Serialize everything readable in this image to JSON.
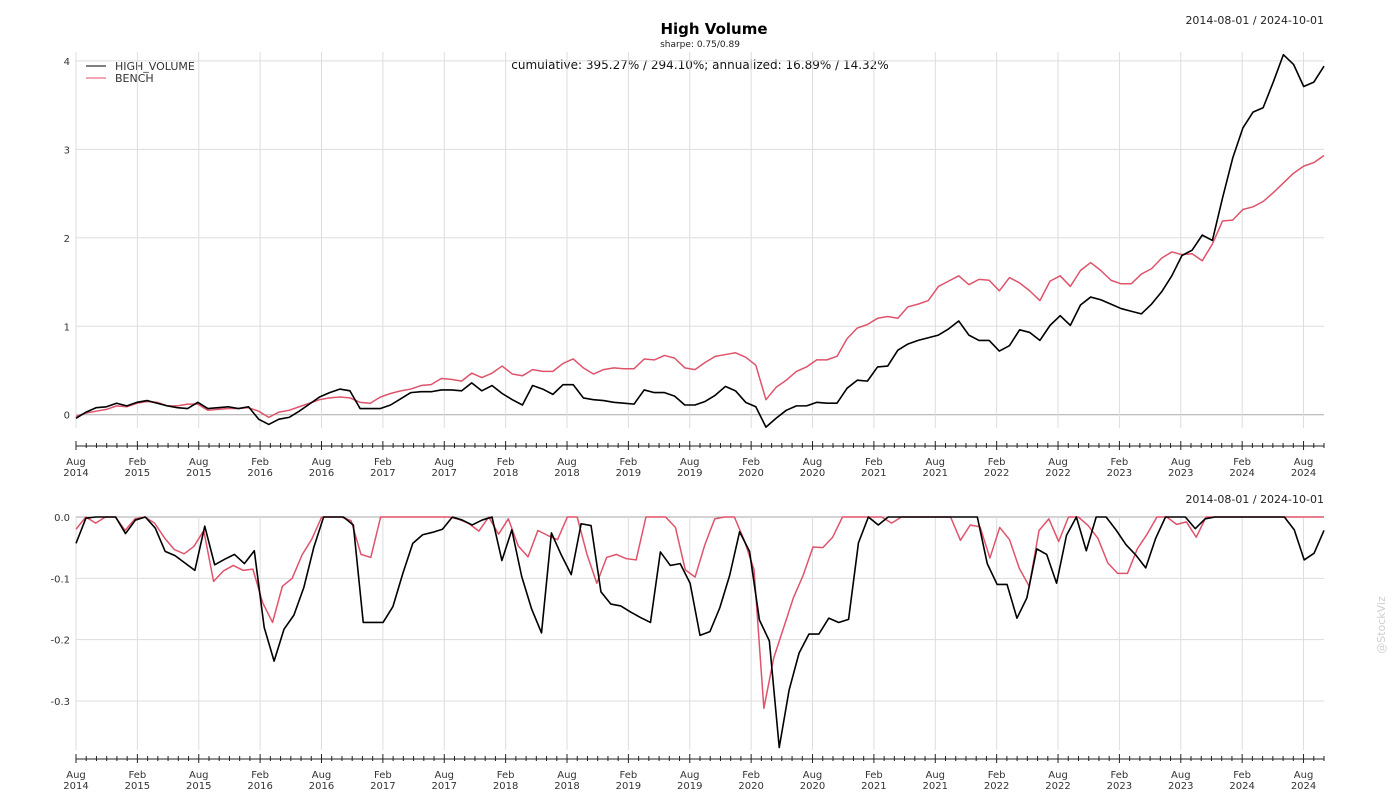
{
  "title": "High Volume",
  "subtitle": "sharpe: 0.75/0.89",
  "stats_annotation": "cumulative: 395.27% / 294.10%; annualized: 16.89% / 14.32%",
  "date_range": "2014-08-01 / 2024-10-01",
  "watermark": "@StockViz",
  "colors": {
    "high_volume": "#000000",
    "bench": "#df536b",
    "grid": "#dddddd",
    "zero": "#aaaaaa"
  },
  "x_tick_labels": [
    [
      "Aug",
      "2014"
    ],
    [
      "Feb",
      "2015"
    ],
    [
      "Aug",
      "2015"
    ],
    [
      "Feb",
      "2016"
    ],
    [
      "Aug",
      "2016"
    ],
    [
      "Feb",
      "2017"
    ],
    [
      "Aug",
      "2017"
    ],
    [
      "Feb",
      "2018"
    ],
    [
      "Aug",
      "2018"
    ],
    [
      "Feb",
      "2019"
    ],
    [
      "Aug",
      "2019"
    ],
    [
      "Feb",
      "2020"
    ],
    [
      "Aug",
      "2020"
    ],
    [
      "Feb",
      "2021"
    ],
    [
      "Aug",
      "2021"
    ],
    [
      "Feb",
      "2022"
    ],
    [
      "Aug",
      "2022"
    ],
    [
      "Feb",
      "2023"
    ],
    [
      "Aug",
      "2023"
    ],
    [
      "Feb",
      "2024"
    ],
    [
      "Aug",
      "2024"
    ]
  ],
  "chart_data": [
    {
      "type": "line",
      "title": "High Volume",
      "subtitle": "sharpe: 0.75/0.89",
      "x_start": "2014-08",
      "x_end": "2024-10",
      "x_frequency": "monthly",
      "ylim": [
        -0.15,
        4.1
      ],
      "y_ticks": [
        "0",
        "1",
        "2",
        "3",
        "4"
      ],
      "grid": true,
      "legend_position": "top-left",
      "series": [
        {
          "name": "HIGH_VOLUME",
          "color": "#000000",
          "values": [
            -0.04,
            0.03,
            0.08,
            0.09,
            0.13,
            0.1,
            0.14,
            0.16,
            0.13,
            0.1,
            0.08,
            0.07,
            0.14,
            0.07,
            0.08,
            0.09,
            0.07,
            0.09,
            -0.05,
            -0.11,
            -0.05,
            -0.03,
            0.04,
            0.12,
            0.2,
            0.25,
            0.29,
            0.27,
            0.07,
            0.07,
            0.07,
            0.11,
            0.18,
            0.25,
            0.26,
            0.26,
            0.28,
            0.28,
            0.27,
            0.36,
            0.27,
            0.33,
            0.24,
            0.17,
            0.11,
            0.33,
            0.29,
            0.23,
            0.34,
            0.34,
            0.19,
            0.17,
            0.16,
            0.14,
            0.13,
            0.12,
            0.28,
            0.25,
            0.25,
            0.21,
            0.11,
            0.11,
            0.15,
            0.22,
            0.32,
            0.27,
            0.14,
            0.09,
            -0.14,
            -0.04,
            0.05,
            0.1,
            0.1,
            0.14,
            0.13,
            0.13,
            0.3,
            0.39,
            0.38,
            0.54,
            0.55,
            0.73,
            0.8,
            0.84,
            0.87,
            0.9,
            0.97,
            1.06,
            0.9,
            0.84,
            0.84,
            0.72,
            0.78,
            0.96,
            0.93,
            0.84,
            1.01,
            1.12,
            1.01,
            1.24,
            1.33,
            1.3,
            1.25,
            1.2,
            1.17,
            1.14,
            1.25,
            1.39,
            1.57,
            1.8,
            1.86,
            2.03,
            1.97,
            2.45,
            2.9,
            3.24,
            3.42,
            3.47,
            3.76,
            4.07,
            3.96,
            3.71,
            3.76,
            3.94
          ]
        },
        {
          "name": "BENCH",
          "color": "#df536b",
          "values": [
            -0.02,
            0.02,
            0.04,
            0.06,
            0.1,
            0.09,
            0.13,
            0.15,
            0.14,
            0.1,
            0.1,
            0.12,
            0.12,
            0.05,
            0.06,
            0.07,
            0.07,
            0.08,
            0.04,
            -0.03,
            0.03,
            0.05,
            0.09,
            0.13,
            0.17,
            0.19,
            0.2,
            0.19,
            0.14,
            0.13,
            0.2,
            0.24,
            0.27,
            0.29,
            0.33,
            0.34,
            0.41,
            0.4,
            0.38,
            0.47,
            0.42,
            0.47,
            0.55,
            0.46,
            0.44,
            0.51,
            0.49,
            0.49,
            0.58,
            0.63,
            0.53,
            0.46,
            0.51,
            0.53,
            0.52,
            0.52,
            0.63,
            0.62,
            0.67,
            0.64,
            0.53,
            0.51,
            0.59,
            0.66,
            0.68,
            0.7,
            0.65,
            0.56,
            0.17,
            0.31,
            0.39,
            0.49,
            0.54,
            0.62,
            0.62,
            0.66,
            0.86,
            0.98,
            1.02,
            1.09,
            1.11,
            1.09,
            1.22,
            1.25,
            1.29,
            1.45,
            1.51,
            1.57,
            1.47,
            1.53,
            1.52,
            1.4,
            1.55,
            1.49,
            1.4,
            1.29,
            1.51,
            1.57,
            1.45,
            1.63,
            1.72,
            1.63,
            1.52,
            1.48,
            1.48,
            1.59,
            1.65,
            1.77,
            1.84,
            1.81,
            1.82,
            1.74,
            1.93,
            2.19,
            2.2,
            2.32,
            2.35,
            2.41,
            2.51,
            2.62,
            2.73,
            2.81,
            2.85,
            2.93
          ]
        }
      ]
    },
    {
      "type": "line",
      "title": "",
      "subtitle": "2014-08-01 / 2024-10-01",
      "x_start": "2014-08",
      "x_end": "2024-10",
      "x_frequency": "monthly",
      "ylim": [
        -0.38,
        0.0
      ],
      "y_ticks": [
        "0.0",
        "-0.1",
        "-0.2",
        "-0.3"
      ],
      "grid": true,
      "series": [
        {
          "name": "HIGH_VOLUME",
          "color": "#000000",
          "values": [
            -0.043,
            -0.002,
            0,
            0,
            0,
            -0.027,
            -0.005,
            0,
            -0.018,
            -0.056,
            -0.063,
            -0.075,
            -0.087,
            -0.015,
            -0.078,
            -0.069,
            -0.061,
            -0.076,
            -0.055,
            -0.18,
            -0.235,
            -0.183,
            -0.16,
            -0.115,
            -0.05,
            0,
            0,
            0,
            -0.013,
            -0.172,
            -0.172,
            -0.172,
            -0.146,
            -0.092,
            -0.043,
            -0.029,
            -0.025,
            -0.02,
            0,
            -0.005,
            -0.013,
            -0.005,
            0,
            -0.071,
            -0.021,
            -0.097,
            -0.15,
            -0.189,
            -0.026,
            -0.062,
            -0.094,
            -0.011,
            -0.014,
            -0.122,
            -0.142,
            -0.145,
            -0.155,
            -0.164,
            -0.172,
            -0.057,
            -0.079,
            -0.076,
            -0.108,
            -0.193,
            -0.187,
            -0.148,
            -0.095,
            -0.024,
            -0.056,
            -0.168,
            -0.202,
            -0.376,
            -0.282,
            -0.222,
            -0.191,
            -0.191,
            -0.165,
            -0.172,
            -0.167,
            -0.042,
            0,
            -0.013,
            0,
            0,
            0,
            0,
            0,
            0,
            0,
            0,
            0,
            0,
            -0.076,
            -0.11,
            -0.11,
            -0.165,
            -0.132,
            -0.052,
            -0.061,
            -0.108,
            -0.03,
            0,
            -0.055,
            0,
            0,
            -0.021,
            -0.045,
            -0.062,
            -0.083,
            -0.035,
            0,
            0,
            0,
            -0.019,
            -0.003,
            0,
            0,
            0,
            0,
            0,
            0,
            0,
            0,
            -0.021,
            -0.07,
            -0.059,
            -0.022
          ]
        },
        {
          "name": "BENCH",
          "color": "#df536b",
          "values": [
            -0.02,
            0,
            -0.01,
            0,
            0,
            -0.022,
            -0.003,
            0,
            -0.01,
            -0.034,
            -0.053,
            -0.06,
            -0.048,
            -0.022,
            -0.105,
            -0.088,
            -0.079,
            -0.087,
            -0.085,
            -0.14,
            -0.172,
            -0.113,
            -0.1,
            -0.062,
            -0.036,
            0,
            0,
            0,
            -0.006,
            -0.061,
            -0.066,
            0,
            0,
            0,
            0,
            0,
            0,
            0,
            0,
            -0.004,
            -0.011,
            -0.023,
            0,
            -0.028,
            -0.003,
            -0.047,
            -0.065,
            -0.022,
            -0.03,
            -0.037,
            0,
            0,
            -0.061,
            -0.108,
            -0.066,
            -0.061,
            -0.068,
            -0.07,
            0,
            0,
            0,
            -0.017,
            -0.086,
            -0.098,
            -0.045,
            -0.003,
            0,
            0,
            -0.038,
            -0.086,
            -0.312,
            -0.23,
            -0.181,
            -0.132,
            -0.095,
            -0.049,
            -0.05,
            -0.033,
            0,
            0,
            0,
            0,
            0,
            -0.01,
            0,
            0,
            0,
            0,
            0,
            0,
            -0.038,
            -0.013,
            -0.016,
            -0.067,
            -0.017,
            -0.037,
            -0.084,
            -0.113,
            -0.022,
            -0.003,
            -0.04,
            0,
            0,
            -0.014,
            -0.035,
            -0.075,
            -0.092,
            -0.092,
            -0.052,
            -0.028,
            0,
            0,
            -0.012,
            -0.008,
            -0.033,
            0,
            0,
            0,
            0,
            0,
            0,
            0,
            0,
            0,
            0,
            0,
            0,
            0
          ]
        }
      ]
    }
  ]
}
